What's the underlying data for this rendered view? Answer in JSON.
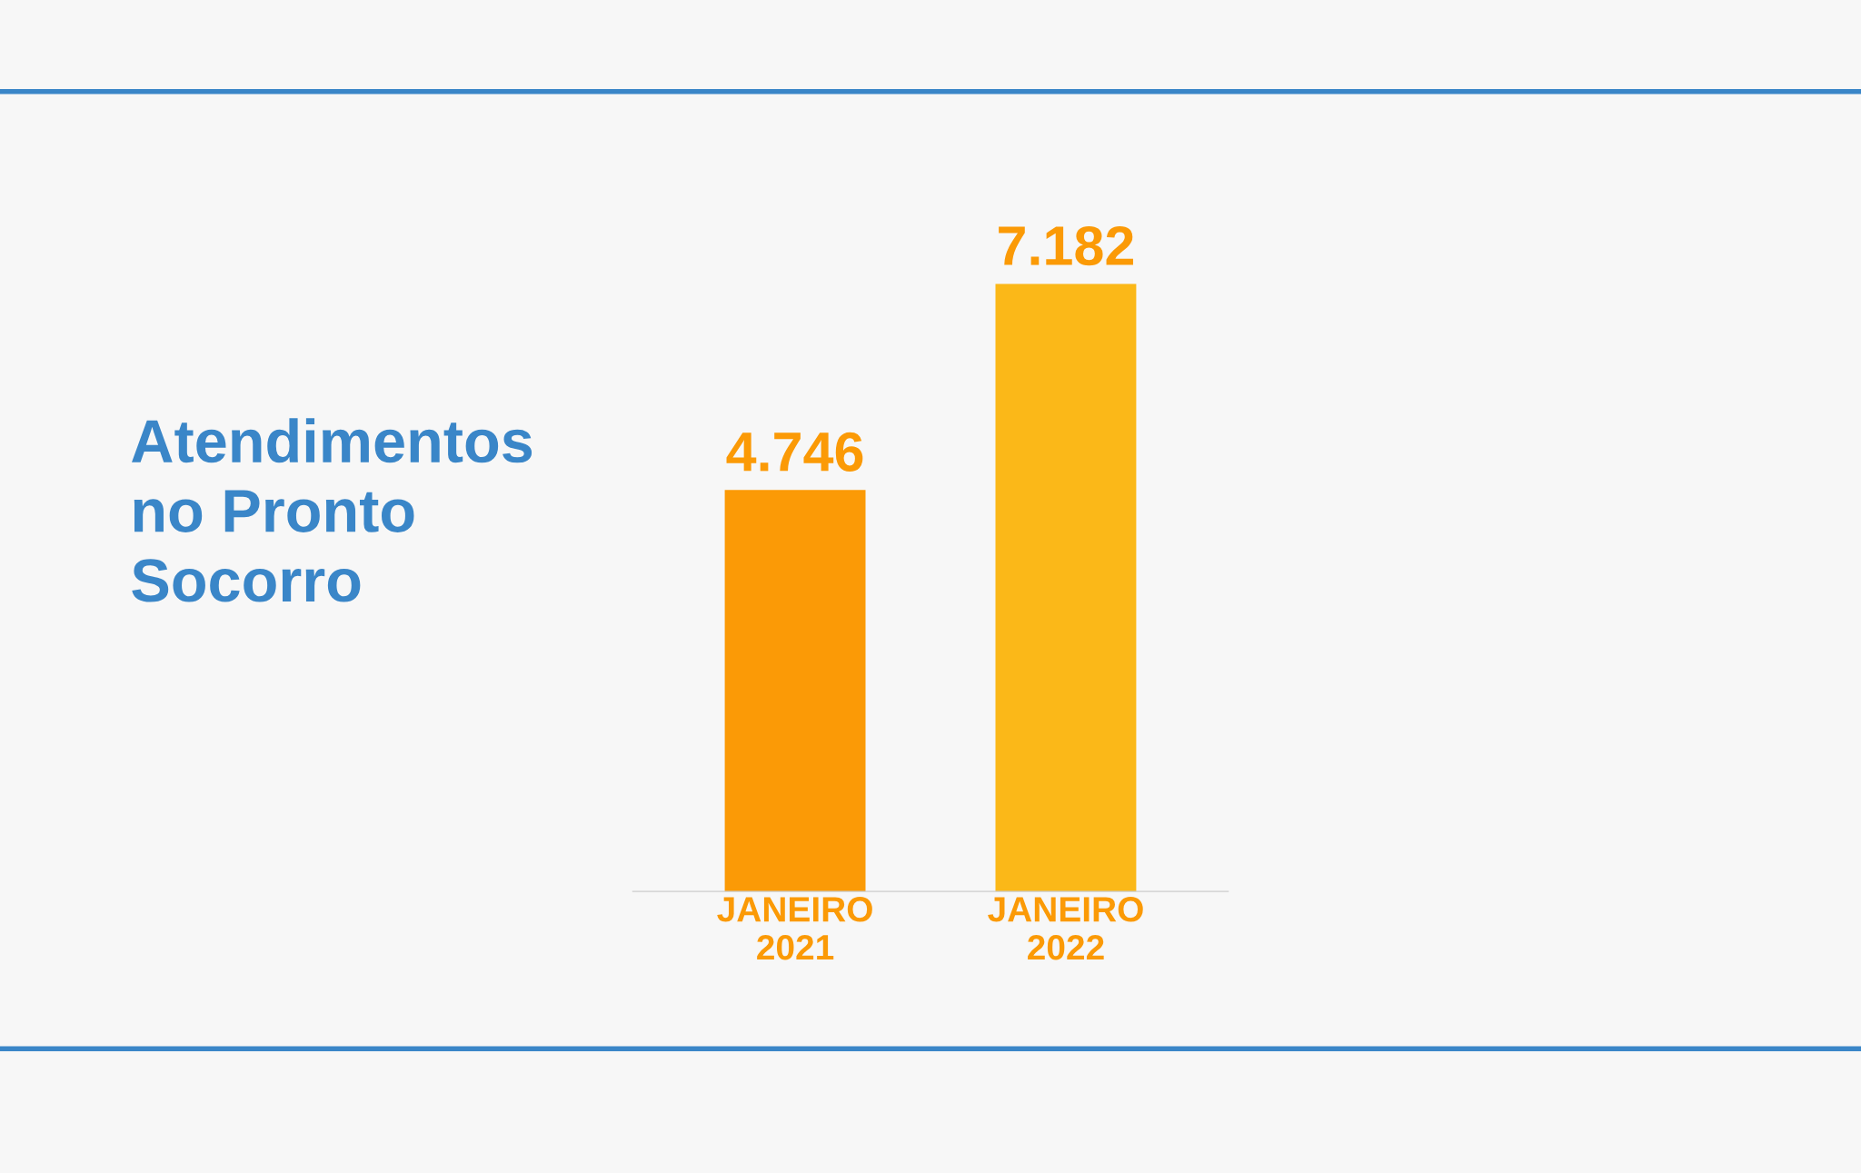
{
  "chart_data": {
    "type": "bar",
    "title": "Atendimentos\nno Pronto\nSocorro",
    "categories": [
      "JANEIRO\n2021",
      "JANEIRO\n2022"
    ],
    "values": [
      4746,
      7182
    ],
    "colors": [
      "#fb9a06",
      "#fbb818"
    ],
    "value_labels": [
      "4.746",
      "7.182"
    ],
    "tick_labels": "x"
  }
}
